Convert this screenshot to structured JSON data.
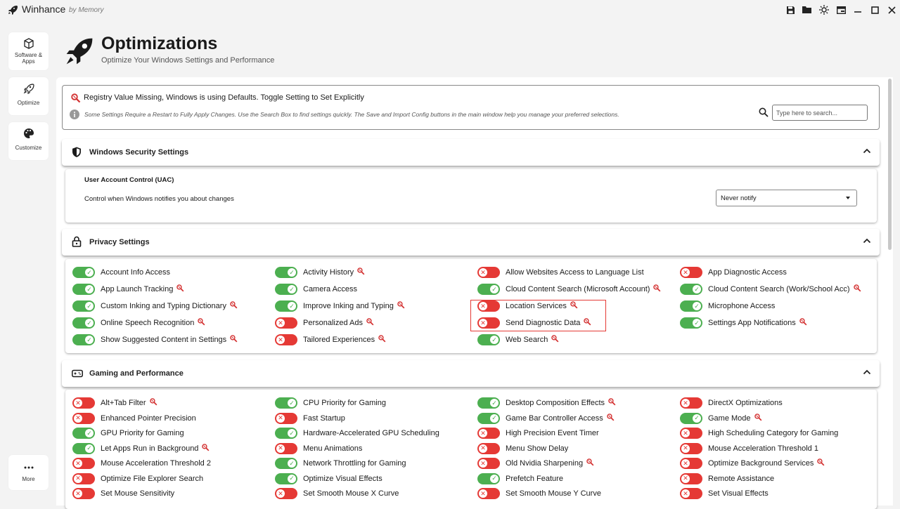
{
  "app": {
    "title": "Winhance",
    "subtitle": "by Memory"
  },
  "sidebar": {
    "items": [
      {
        "label": "Software & Apps",
        "icon": "cube-icon"
      },
      {
        "label": "Optimize",
        "icon": "rocket-icon"
      },
      {
        "label": "Customize",
        "icon": "palette-icon"
      },
      {
        "label": "More",
        "icon": "more-icon"
      }
    ]
  },
  "header": {
    "title": "Optimizations",
    "subtitle": "Optimize Your Windows Settings and Performance"
  },
  "info": {
    "registry_note": "Registry Value Missing, Windows is using Defaults. Toggle Setting to Set Explicitly",
    "tip": "Some Settings Require a Restart to Fully Apply Changes. Use the Search Box to find settings quickly. The Save and Import Config buttons in the main window help you manage your preferred selections.",
    "search_placeholder": "Type here to search..."
  },
  "security": {
    "title": "Windows Security Settings",
    "uac_title": "User Account Control (UAC)",
    "uac_desc": "Control when Windows notifies you about changes",
    "uac_value": "Never notify"
  },
  "privacy": {
    "title": "Privacy Settings",
    "items": [
      {
        "label": "Account Info Access",
        "on": true,
        "missing": false
      },
      {
        "label": "Activity History",
        "on": true,
        "missing": true
      },
      {
        "label": "Allow Websites Access to Language List",
        "on": false,
        "missing": false
      },
      {
        "label": "App Diagnostic Access",
        "on": false,
        "missing": false
      },
      {
        "label": "App Launch Tracking",
        "on": true,
        "missing": true
      },
      {
        "label": "Camera Access",
        "on": true,
        "missing": false
      },
      {
        "label": "Cloud Content Search (Microsoft Account)",
        "on": true,
        "missing": true
      },
      {
        "label": "Cloud Content Search (Work/School Acc)",
        "on": true,
        "missing": true
      },
      {
        "label": "Custom Inking and Typing Dictionary",
        "on": true,
        "missing": true
      },
      {
        "label": "Improve Inking and Typing",
        "on": true,
        "missing": true
      },
      {
        "label": "Location Services",
        "on": false,
        "missing": true
      },
      {
        "label": "Microphone Access",
        "on": true,
        "missing": false
      },
      {
        "label": "Online Speech Recognition",
        "on": true,
        "missing": true
      },
      {
        "label": "Personalized Ads",
        "on": false,
        "missing": true
      },
      {
        "label": "Send Diagnostic Data",
        "on": false,
        "missing": true
      },
      {
        "label": "Settings App Notifications",
        "on": true,
        "missing": true
      },
      {
        "label": "Show Suggested Content in Settings",
        "on": true,
        "missing": true
      },
      {
        "label": "Tailored Experiences",
        "on": false,
        "missing": true
      },
      {
        "label": "Web Search",
        "on": true,
        "missing": true
      }
    ]
  },
  "gaming": {
    "title": "Gaming and Performance",
    "items": [
      {
        "label": "Alt+Tab Filter",
        "on": false,
        "missing": true
      },
      {
        "label": "CPU Priority for Gaming",
        "on": true,
        "missing": false
      },
      {
        "label": "Desktop Composition Effects",
        "on": true,
        "missing": true
      },
      {
        "label": "DirectX Optimizations",
        "on": false,
        "missing": false
      },
      {
        "label": "Enhanced Pointer Precision",
        "on": false,
        "missing": false
      },
      {
        "label": "Fast Startup",
        "on": false,
        "missing": false
      },
      {
        "label": "Game Bar Controller Access",
        "on": true,
        "missing": true
      },
      {
        "label": "Game Mode",
        "on": true,
        "missing": true
      },
      {
        "label": "GPU Priority for Gaming",
        "on": true,
        "missing": false
      },
      {
        "label": "Hardware-Accelerated GPU Scheduling",
        "on": true,
        "missing": false
      },
      {
        "label": "High Precision Event Timer",
        "on": false,
        "missing": false
      },
      {
        "label": "High Scheduling Category for Gaming",
        "on": false,
        "missing": false
      },
      {
        "label": "Let Apps Run in Background",
        "on": true,
        "missing": true
      },
      {
        "label": "Menu Animations",
        "on": false,
        "missing": false
      },
      {
        "label": "Menu Show Delay",
        "on": false,
        "missing": false
      },
      {
        "label": "Mouse Acceleration Threshold 1",
        "on": false,
        "missing": false
      },
      {
        "label": "Mouse Acceleration Threshold 2",
        "on": false,
        "missing": false
      },
      {
        "label": "Network Throttling for Gaming",
        "on": true,
        "missing": false
      },
      {
        "label": "Old Nvidia Sharpening",
        "on": false,
        "missing": true
      },
      {
        "label": "Optimize Background Services",
        "on": false,
        "missing": true
      },
      {
        "label": "Optimize File Explorer Search",
        "on": false,
        "missing": false
      },
      {
        "label": "Optimize Visual Effects",
        "on": true,
        "missing": false
      },
      {
        "label": "Prefetch Feature",
        "on": true,
        "missing": false
      },
      {
        "label": "Remote Assistance",
        "on": false,
        "missing": false
      },
      {
        "label": "Set Mouse Sensitivity",
        "on": false,
        "missing": false
      },
      {
        "label": "Set Smooth Mouse X Curve",
        "on": false,
        "missing": false
      },
      {
        "label": "Set Smooth Mouse Y Curve",
        "on": false,
        "missing": false
      },
      {
        "label": "Set Visual Effects",
        "on": false,
        "missing": false
      }
    ]
  },
  "colors": {
    "on": "#4caf50",
    "off": "#e53935",
    "accent": "#1a1a1a"
  }
}
